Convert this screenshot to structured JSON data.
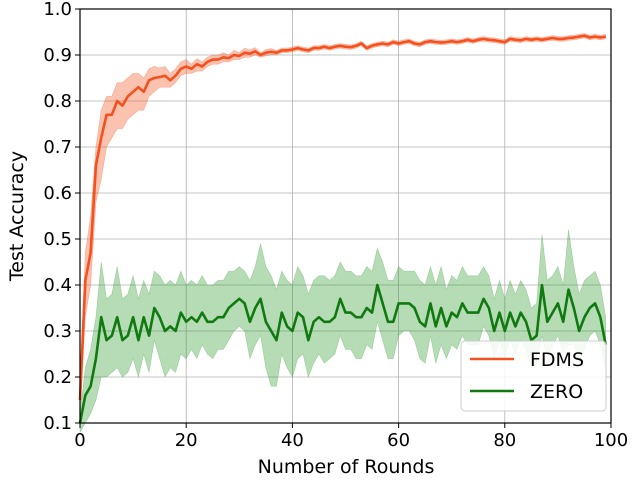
{
  "chart_data": {
    "type": "line",
    "xlabel": "Number of Rounds",
    "ylabel": "Test Accuracy",
    "xlim": [
      0,
      100
    ],
    "ylim": [
      0.1,
      1.0
    ],
    "xticks": [
      0,
      20,
      40,
      60,
      80,
      100
    ],
    "yticks": [
      0.1,
      0.2,
      0.3,
      0.4,
      0.5,
      0.6,
      0.7,
      0.8,
      0.9,
      1.0
    ],
    "xtick_labels": [
      "0",
      "20",
      "40",
      "60",
      "80",
      "100"
    ],
    "ytick_labels": [
      "0.1",
      "0.2",
      "0.3",
      "0.4",
      "0.5",
      "0.6",
      "0.7",
      "0.8",
      "0.9",
      "1.0"
    ],
    "grid": true,
    "legend_position": "bottom-right",
    "x": [
      0,
      1,
      2,
      3,
      4,
      5,
      6,
      7,
      8,
      9,
      10,
      11,
      12,
      13,
      14,
      15,
      16,
      17,
      18,
      19,
      20,
      21,
      22,
      23,
      24,
      25,
      26,
      27,
      28,
      29,
      30,
      31,
      32,
      33,
      34,
      35,
      36,
      37,
      38,
      39,
      40,
      41,
      42,
      43,
      44,
      45,
      46,
      47,
      48,
      49,
      50,
      51,
      52,
      53,
      54,
      55,
      56,
      57,
      58,
      59,
      60,
      61,
      62,
      63,
      64,
      65,
      66,
      67,
      68,
      69,
      70,
      71,
      72,
      73,
      74,
      75,
      76,
      77,
      78,
      79,
      80,
      81,
      82,
      83,
      84,
      85,
      86,
      87,
      88,
      89,
      90,
      91,
      92,
      93,
      94,
      95,
      96,
      97,
      98,
      99
    ],
    "series": [
      {
        "name": "FDMS",
        "color": "#f4511e",
        "band_color": "#f4511e",
        "values": [
          0.15,
          0.41,
          0.47,
          0.66,
          0.72,
          0.77,
          0.77,
          0.8,
          0.79,
          0.81,
          0.82,
          0.83,
          0.82,
          0.845,
          0.85,
          0.852,
          0.855,
          0.845,
          0.855,
          0.87,
          0.875,
          0.87,
          0.88,
          0.875,
          0.885,
          0.89,
          0.89,
          0.895,
          0.893,
          0.9,
          0.898,
          0.905,
          0.903,
          0.908,
          0.9,
          0.905,
          0.907,
          0.905,
          0.91,
          0.91,
          0.912,
          0.915,
          0.912,
          0.91,
          0.915,
          0.915,
          0.918,
          0.915,
          0.918,
          0.92,
          0.918,
          0.917,
          0.92,
          0.925,
          0.915,
          0.92,
          0.923,
          0.925,
          0.923,
          0.928,
          0.925,
          0.928,
          0.93,
          0.925,
          0.923,
          0.928,
          0.93,
          0.928,
          0.927,
          0.928,
          0.93,
          0.928,
          0.93,
          0.933,
          0.93,
          0.933,
          0.935,
          0.933,
          0.932,
          0.93,
          0.928,
          0.935,
          0.933,
          0.932,
          0.935,
          0.933,
          0.935,
          0.933,
          0.935,
          0.937,
          0.935,
          0.935,
          0.937,
          0.938,
          0.94,
          0.942,
          0.938,
          0.94,
          0.938,
          0.94
        ],
        "lower": [
          0.12,
          0.33,
          0.4,
          0.58,
          0.63,
          0.7,
          0.72,
          0.74,
          0.74,
          0.76,
          0.77,
          0.78,
          0.78,
          0.81,
          0.82,
          0.83,
          0.83,
          0.83,
          0.84,
          0.855,
          0.86,
          0.86,
          0.865,
          0.865,
          0.875,
          0.88,
          0.88,
          0.885,
          0.885,
          0.89,
          0.89,
          0.895,
          0.895,
          0.9,
          0.895,
          0.898,
          0.9,
          0.9,
          0.905,
          0.905,
          0.907,
          0.91,
          0.907,
          0.905,
          0.91,
          0.91,
          0.913,
          0.91,
          0.913,
          0.915,
          0.913,
          0.912,
          0.915,
          0.92,
          0.91,
          0.915,
          0.918,
          0.92,
          0.918,
          0.923,
          0.92,
          0.923,
          0.925,
          0.92,
          0.918,
          0.923,
          0.925,
          0.923,
          0.922,
          0.923,
          0.925,
          0.923,
          0.925,
          0.928,
          0.925,
          0.928,
          0.93,
          0.928,
          0.927,
          0.925,
          0.923,
          0.93,
          0.928,
          0.927,
          0.93,
          0.928,
          0.93,
          0.928,
          0.93,
          0.932,
          0.93,
          0.93,
          0.932,
          0.933,
          0.935,
          0.937,
          0.933,
          0.935,
          0.933,
          0.935
        ],
        "upper": [
          0.18,
          0.47,
          0.55,
          0.7,
          0.78,
          0.81,
          0.81,
          0.84,
          0.84,
          0.85,
          0.86,
          0.86,
          0.85,
          0.87,
          0.875,
          0.872,
          0.875,
          0.86,
          0.87,
          0.885,
          0.89,
          0.88,
          0.892,
          0.885,
          0.895,
          0.9,
          0.9,
          0.905,
          0.9,
          0.91,
          0.905,
          0.915,
          0.911,
          0.916,
          0.905,
          0.912,
          0.914,
          0.91,
          0.915,
          0.915,
          0.917,
          0.92,
          0.917,
          0.915,
          0.92,
          0.92,
          0.923,
          0.92,
          0.923,
          0.925,
          0.923,
          0.922,
          0.925,
          0.93,
          0.92,
          0.925,
          0.928,
          0.93,
          0.928,
          0.933,
          0.93,
          0.933,
          0.935,
          0.93,
          0.928,
          0.933,
          0.935,
          0.933,
          0.932,
          0.933,
          0.935,
          0.933,
          0.935,
          0.938,
          0.935,
          0.938,
          0.94,
          0.938,
          0.937,
          0.935,
          0.933,
          0.94,
          0.938,
          0.937,
          0.94,
          0.938,
          0.94,
          0.938,
          0.94,
          0.942,
          0.94,
          0.94,
          0.942,
          0.943,
          0.945,
          0.947,
          0.943,
          0.945,
          0.943,
          0.945
        ]
      },
      {
        "name": "ZERO",
        "color": "#107a10",
        "band_color": "#2e9a2e",
        "values": [
          0.1,
          0.16,
          0.18,
          0.24,
          0.33,
          0.28,
          0.29,
          0.33,
          0.28,
          0.29,
          0.33,
          0.28,
          0.33,
          0.29,
          0.35,
          0.33,
          0.3,
          0.31,
          0.3,
          0.34,
          0.32,
          0.33,
          0.32,
          0.34,
          0.32,
          0.32,
          0.33,
          0.33,
          0.35,
          0.36,
          0.37,
          0.36,
          0.32,
          0.35,
          0.37,
          0.32,
          0.3,
          0.28,
          0.34,
          0.31,
          0.3,
          0.34,
          0.33,
          0.28,
          0.32,
          0.33,
          0.32,
          0.32,
          0.33,
          0.37,
          0.34,
          0.34,
          0.33,
          0.33,
          0.35,
          0.34,
          0.4,
          0.36,
          0.32,
          0.32,
          0.36,
          0.36,
          0.36,
          0.35,
          0.32,
          0.31,
          0.36,
          0.31,
          0.35,
          0.31,
          0.34,
          0.33,
          0.36,
          0.34,
          0.34,
          0.34,
          0.37,
          0.35,
          0.3,
          0.34,
          0.3,
          0.34,
          0.31,
          0.34,
          0.32,
          0.28,
          0.29,
          0.4,
          0.32,
          0.34,
          0.36,
          0.32,
          0.39,
          0.35,
          0.3,
          0.33,
          0.35,
          0.36,
          0.33,
          0.27
        ],
        "lower": [
          0.08,
          0.1,
          0.12,
          0.15,
          0.2,
          0.2,
          0.21,
          0.22,
          0.2,
          0.21,
          0.24,
          0.2,
          0.25,
          0.21,
          0.28,
          0.24,
          0.2,
          0.22,
          0.21,
          0.25,
          0.24,
          0.26,
          0.24,
          0.27,
          0.25,
          0.24,
          0.26,
          0.26,
          0.28,
          0.3,
          0.31,
          0.3,
          0.24,
          0.27,
          0.29,
          0.22,
          0.18,
          0.18,
          0.25,
          0.22,
          0.2,
          0.24,
          0.25,
          0.2,
          0.23,
          0.25,
          0.23,
          0.24,
          0.25,
          0.29,
          0.26,
          0.26,
          0.24,
          0.24,
          0.27,
          0.26,
          0.32,
          0.28,
          0.24,
          0.24,
          0.29,
          0.3,
          0.3,
          0.28,
          0.24,
          0.23,
          0.29,
          0.23,
          0.27,
          0.24,
          0.27,
          0.26,
          0.29,
          0.27,
          0.27,
          0.27,
          0.31,
          0.29,
          0.24,
          0.28,
          0.24,
          0.28,
          0.25,
          0.28,
          0.26,
          0.22,
          0.23,
          0.29,
          0.24,
          0.27,
          0.29,
          0.25,
          0.27,
          0.27,
          0.23,
          0.26,
          0.29,
          0.3,
          0.27,
          0.22
        ],
        "upper": [
          0.12,
          0.22,
          0.26,
          0.33,
          0.45,
          0.37,
          0.38,
          0.44,
          0.37,
          0.38,
          0.42,
          0.37,
          0.41,
          0.38,
          0.43,
          0.42,
          0.4,
          0.41,
          0.4,
          0.43,
          0.4,
          0.41,
          0.4,
          0.42,
          0.4,
          0.4,
          0.41,
          0.41,
          0.43,
          0.43,
          0.44,
          0.43,
          0.41,
          0.44,
          0.49,
          0.44,
          0.42,
          0.39,
          0.43,
          0.41,
          0.4,
          0.44,
          0.42,
          0.38,
          0.41,
          0.42,
          0.42,
          0.41,
          0.42,
          0.45,
          0.43,
          0.43,
          0.42,
          0.42,
          0.44,
          0.43,
          0.48,
          0.45,
          0.41,
          0.41,
          0.44,
          0.43,
          0.43,
          0.43,
          0.41,
          0.4,
          0.44,
          0.4,
          0.44,
          0.39,
          0.42,
          0.41,
          0.44,
          0.42,
          0.42,
          0.42,
          0.44,
          0.42,
          0.37,
          0.41,
          0.37,
          0.41,
          0.38,
          0.41,
          0.39,
          0.35,
          0.36,
          0.51,
          0.41,
          0.42,
          0.44,
          0.4,
          0.52,
          0.44,
          0.38,
          0.41,
          0.42,
          0.43,
          0.4,
          0.33
        ]
      }
    ]
  }
}
